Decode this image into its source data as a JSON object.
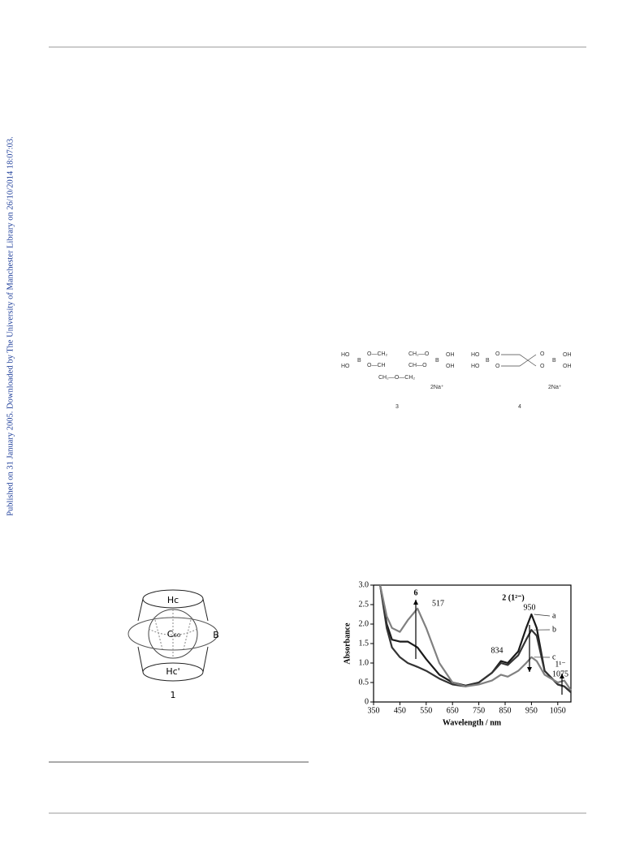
{
  "sidebar": "Published on 31 January 2005. Downloaded by The University of Manchester Library on 26/10/2014 18:07:03.",
  "scheme": {
    "compound3": {
      "texts": [
        "HO",
        "HO",
        "B",
        "O—CH₂",
        "O—CH",
        "CH₂—O—CH₂",
        "CH₂—O",
        "CH—O",
        "B",
        "OH",
        "OH",
        "2Na⁺"
      ],
      "label": "3"
    },
    "compound4": {
      "texts": [
        "HO",
        "HO",
        "B",
        "O",
        "O",
        "O",
        "O",
        "B",
        "OH",
        "OH",
        "2Na⁺"
      ],
      "label": "4"
    }
  },
  "figure1": {
    "labels": [
      "Hc",
      "C₆₀",
      "B",
      "Hc'"
    ],
    "caption": "1"
  },
  "chart_data": {
    "type": "line",
    "xlabel": "Wavelength / nm",
    "ylabel": "Absorbance",
    "x": [
      375,
      400,
      420,
      450,
      480,
      517,
      550,
      600,
      650,
      700,
      750,
      800,
      834,
      860,
      900,
      930,
      950,
      970,
      1000,
      1050,
      1075,
      1100
    ],
    "series": [
      {
        "name": "a",
        "color": "#1a1a1a",
        "values": [
          3.0,
          2.0,
          1.6,
          1.55,
          1.55,
          1.4,
          1.1,
          0.7,
          0.5,
          0.42,
          0.5,
          0.75,
          1.05,
          1.0,
          1.3,
          1.9,
          2.25,
          1.9,
          0.8,
          0.45,
          0.4,
          0.25
        ]
      },
      {
        "name": "b",
        "color": "#333333",
        "values": [
          3.0,
          1.9,
          1.4,
          1.15,
          1.0,
          0.9,
          0.8,
          0.6,
          0.45,
          0.4,
          0.5,
          0.75,
          1.0,
          0.95,
          1.2,
          1.6,
          1.85,
          1.7,
          0.8,
          0.45,
          0.4,
          0.25
        ]
      },
      {
        "name": "c",
        "color": "#808080",
        "values": [
          3.0,
          2.2,
          1.9,
          1.8,
          2.1,
          2.4,
          1.9,
          1.0,
          0.5,
          0.4,
          0.45,
          0.55,
          0.7,
          0.65,
          0.8,
          1.0,
          1.15,
          1.05,
          0.7,
          0.5,
          0.55,
          0.3
        ]
      }
    ],
    "xlim": [
      350,
      1100
    ],
    "xticks": [
      350,
      450,
      550,
      650,
      750,
      850,
      950,
      1050
    ],
    "ylim": [
      0,
      3
    ],
    "yticks": [
      0,
      0.5,
      {
        "value": 1,
        "label": "1.0"
      },
      1.5,
      {
        "value": 2,
        "label": "2.0"
      },
      2.5,
      {
        "value": 3,
        "label": "3.0"
      }
    ],
    "annotations": [
      "6",
      "517",
      "2 (1²⁻)",
      "950",
      "834",
      "1¹⁻",
      "1075"
    ]
  }
}
